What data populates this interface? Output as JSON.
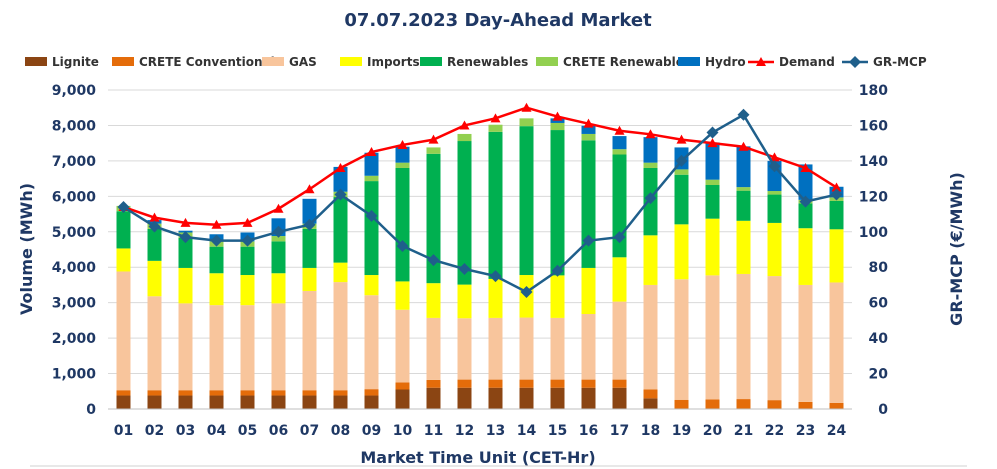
{
  "chart_data": {
    "type": "bar",
    "title": "07.07.2023  Day-Ahead Market",
    "xlabel": "Market Time Unit (CET-Hr)",
    "ylabel": "Volume (MWh)",
    "y2label": "GR-MCP (€/MWh)",
    "ylim": [
      0,
      9000
    ],
    "y2lim": [
      0,
      180
    ],
    "yticks": [
      "0",
      "1,000",
      "2,000",
      "3,000",
      "4,000",
      "5,000",
      "6,000",
      "7,000",
      "8,000",
      "9,000"
    ],
    "y2ticks": [
      "0",
      "20",
      "40",
      "60",
      "80",
      "100",
      "120",
      "140",
      "160",
      "180"
    ],
    "categories": [
      "01",
      "02",
      "03",
      "04",
      "05",
      "06",
      "07",
      "08",
      "09",
      "10",
      "11",
      "12",
      "13",
      "14",
      "15",
      "16",
      "17",
      "18",
      "19",
      "20",
      "21",
      "22",
      "23",
      "24"
    ],
    "series": [
      {
        "name": "Lignite",
        "color": "#8b4513",
        "values": [
          380,
          380,
          380,
          380,
          380,
          380,
          380,
          380,
          380,
          550,
          600,
          600,
          600,
          600,
          600,
          600,
          600,
          300,
          0,
          0,
          0,
          0,
          0,
          0
        ]
      },
      {
        "name": "CRETE Conventional",
        "color": "#e46c0a",
        "values": [
          150,
          150,
          150,
          150,
          150,
          150,
          150,
          150,
          180,
          200,
          220,
          230,
          230,
          230,
          230,
          230,
          230,
          250,
          260,
          270,
          280,
          250,
          200,
          170
        ]
      },
      {
        "name": "GAS",
        "color": "#f8c59c",
        "values": [
          3350,
          2650,
          2450,
          2400,
          2400,
          2450,
          2800,
          3050,
          2650,
          2050,
          1750,
          1730,
          1740,
          1750,
          1740,
          1850,
          2200,
          2950,
          3400,
          3500,
          3530,
          3500,
          3300,
          3400
        ]
      },
      {
        "name": "Imports",
        "color": "#ffff00",
        "values": [
          650,
          1000,
          1000,
          900,
          850,
          850,
          650,
          550,
          570,
          800,
          980,
          950,
          1100,
          1200,
          1200,
          1300,
          1250,
          1400,
          1550,
          1600,
          1500,
          1500,
          1600,
          1500
        ]
      },
      {
        "name": "Renewables",
        "color": "#00b050",
        "values": [
          1050,
          900,
          850,
          750,
          800,
          900,
          1100,
          1850,
          2650,
          3200,
          3650,
          4050,
          4150,
          4200,
          4100,
          3600,
          2900,
          1900,
          1400,
          950,
          850,
          800,
          700,
          800
        ]
      },
      {
        "name": "CRETE Renewables",
        "color": "#92d050",
        "values": [
          150,
          150,
          150,
          150,
          150,
          150,
          150,
          150,
          150,
          150,
          180,
          200,
          200,
          220,
          200,
          180,
          150,
          150,
          150,
          150,
          100,
          100,
          100,
          100
        ]
      },
      {
        "name": "Hydro",
        "color": "#0070c0",
        "values": [
          0,
          100,
          50,
          200,
          250,
          500,
          700,
          700,
          650,
          450,
          0,
          0,
          0,
          0,
          130,
          230,
          370,
          720,
          620,
          1050,
          1150,
          850,
          1000,
          300
        ]
      }
    ],
    "lines": [
      {
        "name": "Demand",
        "color": "#ff0000",
        "axis": "left",
        "values": [
          5700,
          5400,
          5250,
          5200,
          5250,
          5650,
          6200,
          6800,
          7250,
          7450,
          7600,
          8000,
          8200,
          8500,
          8250,
          8050,
          7850,
          7750,
          7600,
          7500,
          7400,
          7100,
          6800,
          6250
        ]
      },
      {
        "name": "GR-MCP",
        "color": "#1f5f8b",
        "axis": "right",
        "values": [
          114,
          103,
          97,
          95,
          95,
          100,
          104,
          121,
          109,
          92,
          84,
          79,
          75,
          66,
          78,
          95,
          97,
          119,
          140,
          156,
          166,
          137,
          117,
          121
        ]
      }
    ]
  }
}
